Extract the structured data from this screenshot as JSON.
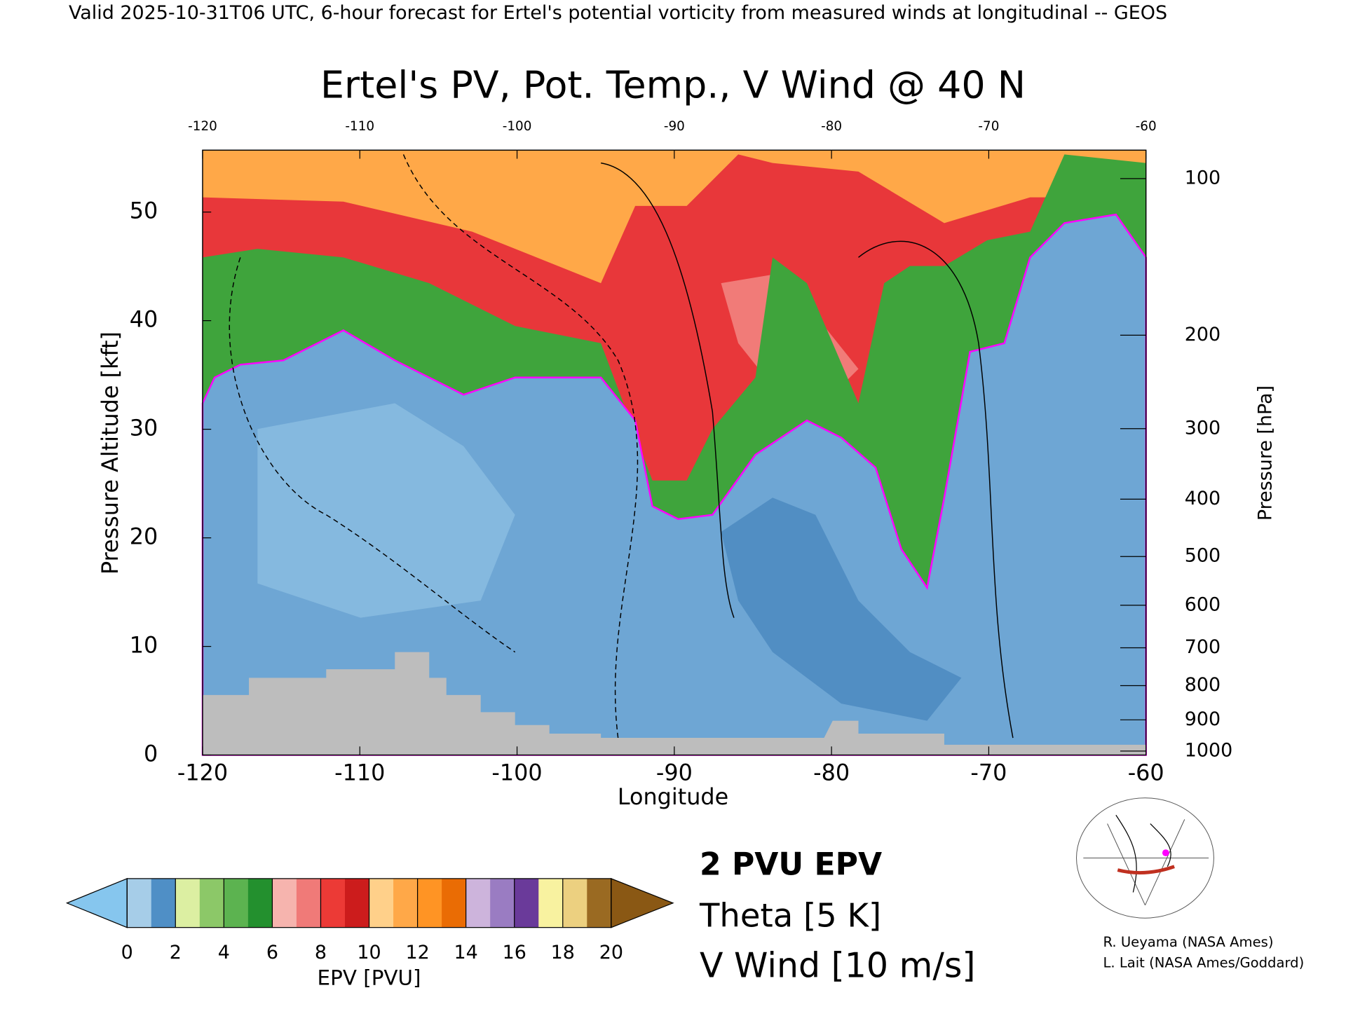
{
  "chart_data": {
    "type": "contour",
    "header": "Valid 2025-10-31T06 UTC, 6-hour forecast for Ertel's potential vorticity from measured winds at longitudinal -- GEOS",
    "title": "Ertel's PV, Pot. Temp., V Wind @ 40 N",
    "xlabel": "Longitude",
    "ylabel": "Pressure Altitude [kft]",
    "y2label": "Pressure [hPa]",
    "xlim": [
      -120,
      -60
    ],
    "xticks": [
      -120,
      -110,
      -100,
      -90,
      -80,
      -70,
      -60
    ],
    "ylim": [
      0,
      55.7
    ],
    "yticks": [
      0,
      10,
      20,
      30,
      40,
      50
    ],
    "y2scale": "pressure-altitude",
    "y2ticks": [
      100,
      200,
      300,
      400,
      500,
      600,
      700,
      800,
      900,
      1000
    ],
    "colorbar": {
      "label": "EPV [PVU]",
      "lim": [
        0,
        20
      ],
      "ticks": [
        0,
        2,
        4,
        6,
        8,
        10,
        12,
        14,
        16,
        18,
        20
      ],
      "colors": [
        "#a6cde8",
        "#4f8fc6",
        "#dcefa2",
        "#8cc868",
        "#5cb350",
        "#23902e",
        "#f6b4ae",
        "#f07a78",
        "#ec3a36",
        "#cc1c1c",
        "#ffd08a",
        "#ffa848",
        "#ff9424",
        "#ea6c04",
        "#cdb4dc",
        "#9a7cc2",
        "#6a3a9a",
        "#f8f2a0",
        "#ecd080",
        "#9a6a22"
      ],
      "under_color": "#86c6ee",
      "over_color": "#8a5814"
    },
    "legend": [
      "2 PVU EPV",
      "Theta [5 K]",
      "V Wind [10 m/s]"
    ],
    "legend_colors": [
      "#ff00ff",
      "#b0b0b0",
      "#000000"
    ],
    "credits": [
      "R. Ueyama (NASA Ames)",
      "L. Lait (NASA Ames/Goddard)"
    ]
  }
}
